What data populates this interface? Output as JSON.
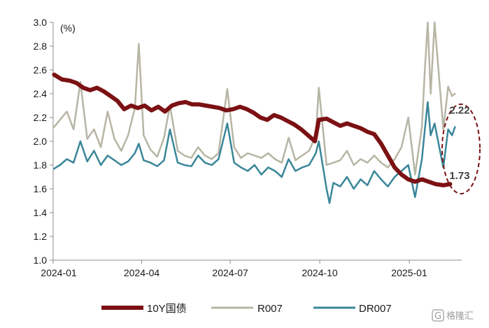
{
  "chart_data": {
    "type": "line",
    "unit_label": "(%)",
    "ylim": [
      1.0,
      3.0
    ],
    "y_ticks": [
      "1.0",
      "1.2",
      "1.4",
      "1.6",
      "1.8",
      "2.0",
      "2.2",
      "2.4",
      "2.6",
      "2.8",
      "3.0"
    ],
    "x_range": [
      "2024-01-01",
      "2025-02-28"
    ],
    "x_ticks": [
      {
        "label": "2024-01",
        "date": "2024-01-01"
      },
      {
        "label": "2024-04",
        "date": "2024-04-01"
      },
      {
        "label": "2024-07",
        "date": "2024-07-01"
      },
      {
        "label": "2024-10",
        "date": "2024-10-01"
      },
      {
        "label": "2025-01",
        "date": "2025-01-01"
      }
    ],
    "grid": false,
    "legend_position": "bottom",
    "series": [
      {
        "name": "10Y国债",
        "color": "#7b1113",
        "points": [
          [
            "2024-01-02",
            2.56
          ],
          [
            "2024-01-10",
            2.52
          ],
          [
            "2024-01-18",
            2.51
          ],
          [
            "2024-01-25",
            2.49
          ],
          [
            "2024-02-01",
            2.45
          ],
          [
            "2024-02-08",
            2.43
          ],
          [
            "2024-02-15",
            2.45
          ],
          [
            "2024-02-22",
            2.42
          ],
          [
            "2024-02-29",
            2.38
          ],
          [
            "2024-03-07",
            2.34
          ],
          [
            "2024-03-14",
            2.27
          ],
          [
            "2024-03-21",
            2.3
          ],
          [
            "2024-03-28",
            2.28
          ],
          [
            "2024-04-04",
            2.3
          ],
          [
            "2024-04-11",
            2.26
          ],
          [
            "2024-04-18",
            2.29
          ],
          [
            "2024-04-25",
            2.25
          ],
          [
            "2024-05-02",
            2.3
          ],
          [
            "2024-05-09",
            2.32
          ],
          [
            "2024-05-16",
            2.33
          ],
          [
            "2024-05-23",
            2.31
          ],
          [
            "2024-05-30",
            2.31
          ],
          [
            "2024-06-06",
            2.3
          ],
          [
            "2024-06-13",
            2.29
          ],
          [
            "2024-06-20",
            2.28
          ],
          [
            "2024-06-27",
            2.26
          ],
          [
            "2024-07-04",
            2.27
          ],
          [
            "2024-07-11",
            2.29
          ],
          [
            "2024-07-18",
            2.27
          ],
          [
            "2024-07-25",
            2.24
          ],
          [
            "2024-08-01",
            2.2
          ],
          [
            "2024-08-08",
            2.18
          ],
          [
            "2024-08-15",
            2.22
          ],
          [
            "2024-08-22",
            2.2
          ],
          [
            "2024-08-29",
            2.17
          ],
          [
            "2024-09-05",
            2.14
          ],
          [
            "2024-09-12",
            2.1
          ],
          [
            "2024-09-19",
            2.05
          ],
          [
            "2024-09-26",
            2.0
          ],
          [
            "2024-09-30",
            2.18
          ],
          [
            "2024-10-08",
            2.19
          ],
          [
            "2024-10-15",
            2.16
          ],
          [
            "2024-10-22",
            2.13
          ],
          [
            "2024-10-29",
            2.15
          ],
          [
            "2024-11-05",
            2.13
          ],
          [
            "2024-11-12",
            2.11
          ],
          [
            "2024-11-19",
            2.08
          ],
          [
            "2024-11-26",
            2.06
          ],
          [
            "2024-12-03",
            1.98
          ],
          [
            "2024-12-10",
            1.88
          ],
          [
            "2024-12-17",
            1.78
          ],
          [
            "2024-12-24",
            1.72
          ],
          [
            "2024-12-31",
            1.68
          ],
          [
            "2025-01-07",
            1.66
          ],
          [
            "2025-01-14",
            1.68
          ],
          [
            "2025-01-21",
            1.66
          ],
          [
            "2025-01-28",
            1.64
          ],
          [
            "2025-02-05",
            1.63
          ],
          [
            "2025-02-12",
            1.64
          ]
        ]
      },
      {
        "name": "R007",
        "color": "#b7b5a4",
        "points": [
          [
            "2024-01-02",
            2.12
          ],
          [
            "2024-01-08",
            2.18
          ],
          [
            "2024-01-15",
            2.25
          ],
          [
            "2024-01-22",
            2.1
          ],
          [
            "2024-01-29",
            2.5
          ],
          [
            "2024-02-05",
            2.02
          ],
          [
            "2024-02-12",
            2.1
          ],
          [
            "2024-02-19",
            1.95
          ],
          [
            "2024-02-26",
            2.25
          ],
          [
            "2024-03-04",
            2.02
          ],
          [
            "2024-03-11",
            1.92
          ],
          [
            "2024-03-18",
            2.05
          ],
          [
            "2024-03-25",
            2.28
          ],
          [
            "2024-03-29",
            2.82
          ],
          [
            "2024-04-03",
            2.05
          ],
          [
            "2024-04-10",
            1.93
          ],
          [
            "2024-04-17",
            1.87
          ],
          [
            "2024-04-24",
            2.03
          ],
          [
            "2024-04-30",
            2.3
          ],
          [
            "2024-05-08",
            1.92
          ],
          [
            "2024-05-15",
            1.88
          ],
          [
            "2024-05-22",
            1.86
          ],
          [
            "2024-05-29",
            1.95
          ],
          [
            "2024-06-05",
            1.88
          ],
          [
            "2024-06-12",
            1.85
          ],
          [
            "2024-06-19",
            1.9
          ],
          [
            "2024-06-28",
            2.44
          ],
          [
            "2024-07-05",
            1.95
          ],
          [
            "2024-07-12",
            1.86
          ],
          [
            "2024-07-19",
            1.9
          ],
          [
            "2024-07-26",
            1.88
          ],
          [
            "2024-08-02",
            1.86
          ],
          [
            "2024-08-09",
            1.9
          ],
          [
            "2024-08-16",
            1.85
          ],
          [
            "2024-08-23",
            1.82
          ],
          [
            "2024-08-30",
            2.03
          ],
          [
            "2024-09-06",
            1.84
          ],
          [
            "2024-09-13",
            1.88
          ],
          [
            "2024-09-20",
            1.92
          ],
          [
            "2024-09-27",
            2.05
          ],
          [
            "2024-09-30",
            2.45
          ],
          [
            "2024-10-08",
            1.8
          ],
          [
            "2024-10-15",
            1.82
          ],
          [
            "2024-10-22",
            1.84
          ],
          [
            "2024-10-29",
            1.92
          ],
          [
            "2024-11-05",
            1.8
          ],
          [
            "2024-11-12",
            1.85
          ],
          [
            "2024-11-19",
            1.82
          ],
          [
            "2024-11-26",
            1.88
          ],
          [
            "2024-12-03",
            1.82
          ],
          [
            "2024-12-10",
            1.78
          ],
          [
            "2024-12-17",
            1.85
          ],
          [
            "2024-12-24",
            1.95
          ],
          [
            "2024-12-31",
            2.2
          ],
          [
            "2025-01-07",
            1.72
          ],
          [
            "2025-01-14",
            2.12
          ],
          [
            "2025-01-17",
            2.6
          ],
          [
            "2025-01-20",
            3.0
          ],
          [
            "2025-01-23",
            2.4
          ],
          [
            "2025-01-27",
            3.0
          ],
          [
            "2025-02-05",
            2.1
          ],
          [
            "2025-02-10",
            2.46
          ],
          [
            "2025-02-14",
            2.38
          ],
          [
            "2025-02-17",
            2.4
          ]
        ]
      },
      {
        "name": "DR007",
        "color": "#3a8699",
        "points": [
          [
            "2024-01-02",
            1.77
          ],
          [
            "2024-01-08",
            1.8
          ],
          [
            "2024-01-15",
            1.85
          ],
          [
            "2024-01-22",
            1.82
          ],
          [
            "2024-01-29",
            2.0
          ],
          [
            "2024-02-05",
            1.83
          ],
          [
            "2024-02-12",
            1.92
          ],
          [
            "2024-02-19",
            1.8
          ],
          [
            "2024-02-26",
            1.88
          ],
          [
            "2024-03-04",
            1.84
          ],
          [
            "2024-03-11",
            1.8
          ],
          [
            "2024-03-18",
            1.83
          ],
          [
            "2024-03-25",
            1.9
          ],
          [
            "2024-03-29",
            1.98
          ],
          [
            "2024-04-03",
            1.84
          ],
          [
            "2024-04-10",
            1.82
          ],
          [
            "2024-04-17",
            1.79
          ],
          [
            "2024-04-24",
            1.84
          ],
          [
            "2024-04-30",
            2.1
          ],
          [
            "2024-05-08",
            1.82
          ],
          [
            "2024-05-15",
            1.8
          ],
          [
            "2024-05-22",
            1.79
          ],
          [
            "2024-05-29",
            1.88
          ],
          [
            "2024-06-05",
            1.82
          ],
          [
            "2024-06-12",
            1.8
          ],
          [
            "2024-06-19",
            1.85
          ],
          [
            "2024-06-28",
            2.15
          ],
          [
            "2024-07-05",
            1.82
          ],
          [
            "2024-07-12",
            1.78
          ],
          [
            "2024-07-19",
            1.75
          ],
          [
            "2024-07-26",
            1.8
          ],
          [
            "2024-08-02",
            1.72
          ],
          [
            "2024-08-09",
            1.78
          ],
          [
            "2024-08-16",
            1.75
          ],
          [
            "2024-08-23",
            1.7
          ],
          [
            "2024-08-30",
            1.85
          ],
          [
            "2024-09-06",
            1.75
          ],
          [
            "2024-09-13",
            1.78
          ],
          [
            "2024-09-20",
            1.8
          ],
          [
            "2024-09-27",
            1.9
          ],
          [
            "2024-09-30",
            2.0
          ],
          [
            "2024-10-08",
            1.6
          ],
          [
            "2024-10-11",
            1.48
          ],
          [
            "2024-10-15",
            1.65
          ],
          [
            "2024-10-22",
            1.62
          ],
          [
            "2024-10-29",
            1.7
          ],
          [
            "2024-11-05",
            1.6
          ],
          [
            "2024-11-12",
            1.68
          ],
          [
            "2024-11-19",
            1.63
          ],
          [
            "2024-11-26",
            1.75
          ],
          [
            "2024-12-03",
            1.68
          ],
          [
            "2024-12-10",
            1.62
          ],
          [
            "2024-12-17",
            1.7
          ],
          [
            "2024-12-24",
            1.75
          ],
          [
            "2024-12-31",
            1.8
          ],
          [
            "2025-01-07",
            1.53
          ],
          [
            "2025-01-14",
            1.85
          ],
          [
            "2025-01-17",
            2.1
          ],
          [
            "2025-01-20",
            2.33
          ],
          [
            "2025-01-23",
            2.05
          ],
          [
            "2025-01-27",
            2.15
          ],
          [
            "2025-02-05",
            1.78
          ],
          [
            "2025-02-10",
            2.1
          ],
          [
            "2025-02-14",
            2.05
          ],
          [
            "2025-02-17",
            2.12
          ]
        ]
      }
    ],
    "annotations": [
      {
        "text": "2.22",
        "date": "2025-02-17",
        "value": 2.22
      },
      {
        "text": "1.73",
        "date": "2025-02-17",
        "value": 1.73
      }
    ]
  },
  "watermark": {
    "text": "格隆汇",
    "logo": "G"
  }
}
